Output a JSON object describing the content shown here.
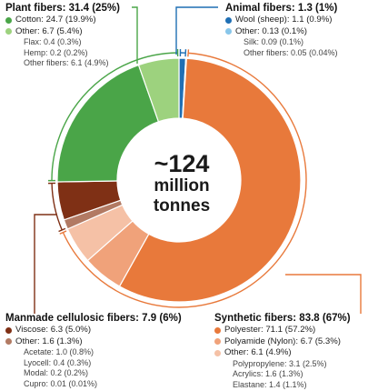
{
  "center": {
    "line1": "~124",
    "line2": "million",
    "line3": "tonnes"
  },
  "colors": {
    "plant_dark": "#4aa548",
    "plant_light": "#9dd27e",
    "animal_dark": "#1f6fb4",
    "animal_light": "#88c6ea",
    "synthetic_dark": "#e8793b",
    "synthetic_mid": "#f0a27a",
    "synthetic_light": "#f5c1a6",
    "cellulosic_dark": "#7f3015",
    "cellulosic_light": "#b27a63"
  },
  "legends": {
    "plant": {
      "title": "Plant fibers: 31.4 (25%)",
      "items": [
        {
          "label": "Cotton: 24.7 (19.9%)",
          "color": "#4aa548"
        },
        {
          "label": "Other: 6.7 (5.4%)",
          "color": "#9dd27e"
        }
      ],
      "subs": [
        "Flax: 0.4 (0.3%)",
        "Hemp: 0.2 (0.2%)",
        "Other fibers: 6.1 (4.9%)"
      ]
    },
    "animal": {
      "title": "Animal fibers: 1.3 (1%)",
      "items": [
        {
          "label": "Wool (sheep): 1.1 (0.9%)",
          "color": "#1f6fb4"
        },
        {
          "label": "Other: 0.13 (0.1%)",
          "color": "#88c6ea"
        }
      ],
      "subs": [
        "Silk: 0.09 (0.1%)",
        "Other fibers: 0.05 (0.04%)"
      ]
    },
    "cellulosic": {
      "title": "Manmade cellulosic fibers: 7.9 (6%)",
      "items": [
        {
          "label": "Viscose: 6.3 (5.0%)",
          "color": "#7f3015"
        },
        {
          "label": "Other: 1.6 (1.3%)",
          "color": "#b27a63"
        }
      ],
      "subs": [
        "Acetate: 1.0 (0.8%)",
        "Lyocell: 0.4 (0.3%)",
        "Modal: 0.2 (0.2%)",
        "Cupro: 0.01 (0.01%)"
      ]
    },
    "synthetic": {
      "title": "Synthetic fibers: 83.8 (67%)",
      "items": [
        {
          "label": "Polyester: 71.1 (57.2%)",
          "color": "#e8793b"
        },
        {
          "label": "Polyamide (Nylon): 6.7 (5.3%)",
          "color": "#f0a27a"
        },
        {
          "label": "Other: 6.1 (4.9%)",
          "color": "#f5c1a6"
        }
      ],
      "subs": [
        "Polypropylene: 3.1 (2.5%)",
        "Acrylics: 1.6 (1.3%)",
        "Elastane: 1.4 (1.1%)"
      ]
    }
  },
  "chart_data": {
    "type": "pie",
    "start_angle_deg": 0,
    "direction": "clockwise",
    "center_label": "~124 million tonnes",
    "total": 124.4,
    "slices": [
      {
        "label": "Wool (sheep)",
        "value": 1.1,
        "color": "#1f6fb4",
        "group": "animal"
      },
      {
        "label": "Other",
        "value": 0.13,
        "color": "#88c6ea",
        "group": "animal"
      },
      {
        "label": "Polyester",
        "value": 71.1,
        "color": "#e8793b",
        "group": "synthetic"
      },
      {
        "label": "Polyamide (Nylon)",
        "value": 6.7,
        "color": "#f0a27a",
        "group": "synthetic"
      },
      {
        "label": "Other",
        "value": 6.1,
        "color": "#f5c1a6",
        "group": "synthetic"
      },
      {
        "label": "Other",
        "value": 1.6,
        "color": "#b27a63",
        "group": "cellulosic"
      },
      {
        "label": "Viscose",
        "value": 6.3,
        "color": "#7f3015",
        "group": "cellulosic"
      },
      {
        "label": "Cotton",
        "value": 24.7,
        "color": "#4aa548",
        "group": "plant"
      },
      {
        "label": "Other",
        "value": 6.7,
        "color": "#9dd27e",
        "group": "plant"
      }
    ],
    "groups": [
      {
        "name": "animal",
        "label": "Animal fibers",
        "value": 1.3,
        "share": "1%",
        "color": "#1f6fb4"
      },
      {
        "name": "synthetic",
        "label": "Synthetic fibers",
        "value": 83.8,
        "share": "67%",
        "color": "#e8793b"
      },
      {
        "name": "cellulosic",
        "label": "Manmade cellulosic fibers",
        "value": 7.9,
        "share": "6%",
        "color": "#7f3015"
      },
      {
        "name": "plant",
        "label": "Plant fibers",
        "value": 31.4,
        "share": "25%",
        "color": "#4aa548"
      }
    ]
  }
}
